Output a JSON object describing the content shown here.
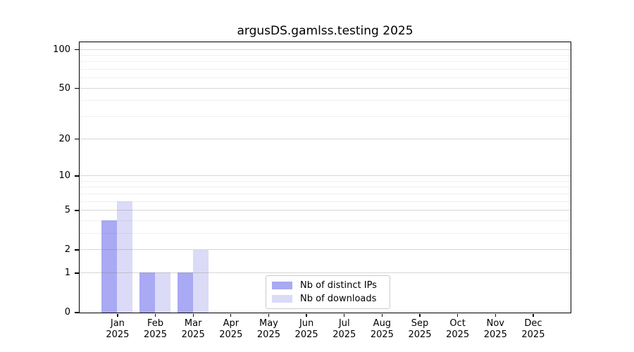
{
  "chart_data": {
    "type": "bar",
    "title": "argusDS.gamlss.testing 2025",
    "categories": [
      "Jan",
      "Feb",
      "Mar",
      "Apr",
      "May",
      "Jun",
      "Jul",
      "Aug",
      "Sep",
      "Oct",
      "Nov",
      "Dec"
    ],
    "year_label": "2025",
    "series": [
      {
        "name": "Nb of distinct IPs",
        "color": "#a9a9f4",
        "values": [
          4,
          1,
          1,
          0,
          0,
          0,
          0,
          0,
          0,
          0,
          0,
          0
        ]
      },
      {
        "name": "Nb of downloads",
        "color": "#dbdbf7",
        "values": [
          6,
          1,
          2,
          0,
          0,
          0,
          0,
          0,
          0,
          0,
          0,
          0
        ]
      }
    ],
    "xlabel": "",
    "ylabel": "",
    "yscale": "log1p",
    "ylim": [
      0,
      114
    ],
    "y_major_ticks": [
      0,
      1,
      2,
      5,
      10,
      20,
      50,
      100
    ],
    "y_minor_gridlines": [
      3,
      4,
      6,
      7,
      8,
      9,
      30,
      40,
      60,
      70,
      80,
      90
    ],
    "grid": "horizontal",
    "legend_position": "bottom-center"
  }
}
